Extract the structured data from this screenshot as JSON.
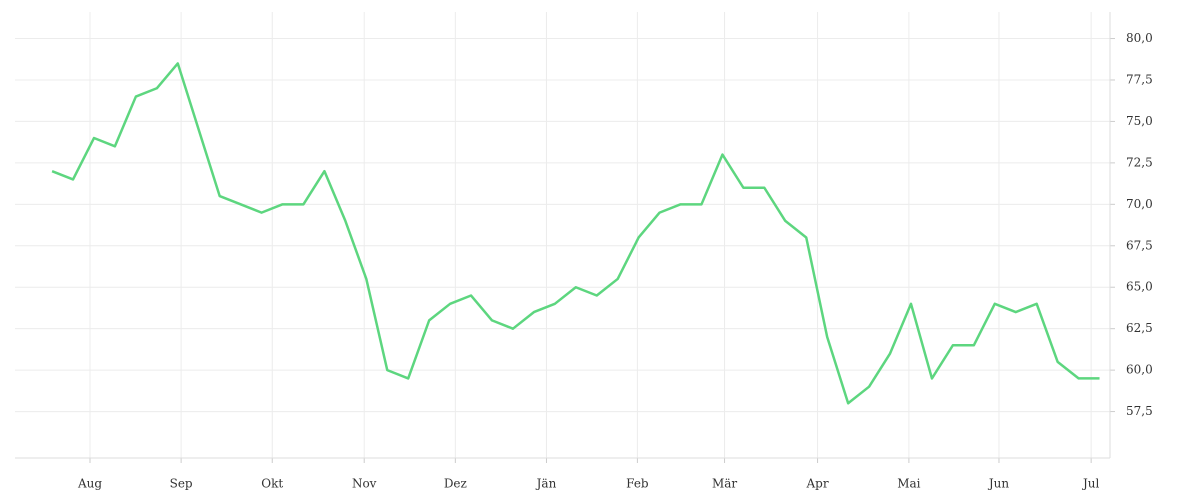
{
  "chart_data": {
    "type": "line",
    "categories": [
      null,
      null,
      null,
      null,
      null,
      null,
      null,
      null,
      null,
      null,
      null,
      null,
      null,
      null,
      null,
      null,
      null,
      null,
      null,
      null,
      null,
      null,
      null,
      null,
      null,
      null,
      null,
      null,
      null,
      null,
      null,
      null,
      null,
      null,
      null,
      null,
      null,
      null,
      null,
      null,
      null,
      null,
      null,
      null,
      null,
      null,
      null,
      null,
      null,
      null,
      null
    ],
    "series": [
      {
        "color": "#5dd67f",
        "values": [
          72.0,
          71.5,
          74.0,
          73.5,
          76.5,
          77.0,
          78.5,
          74.5,
          70.5,
          70.0,
          69.5,
          70.0,
          70.0,
          72.0,
          69.0,
          65.5,
          60.0,
          59.5,
          63.0,
          64.0,
          64.5,
          63.0,
          62.5,
          63.5,
          64.0,
          65.0,
          64.5,
          65.5,
          68.0,
          69.5,
          70.0,
          70.0,
          73.0,
          71.0,
          71.0,
          69.0,
          68.0,
          62.0,
          58.0,
          59.0,
          61.0,
          64.0,
          59.5,
          61.5,
          61.5,
          64.0,
          63.5,
          64.0,
          60.5,
          59.5,
          59.5
        ]
      }
    ],
    "xlim": [
      -1.77,
      50.5
    ],
    "xticks": [
      {
        "value": 1.81,
        "label": "Aug"
      },
      {
        "value": 6.16,
        "label": "Sep"
      },
      {
        "value": 10.51,
        "label": "Okt"
      },
      {
        "value": 14.9,
        "label": "Nov"
      },
      {
        "value": 19.25,
        "label": "Dez"
      },
      {
        "value": 23.6,
        "label": "Jän"
      },
      {
        "value": 27.94,
        "label": "Feb"
      },
      {
        "value": 32.1,
        "label": "Mär"
      },
      {
        "value": 36.54,
        "label": "Apr"
      },
      {
        "value": 40.9,
        "label": "Mai"
      },
      {
        "value": 45.2,
        "label": "Jun"
      },
      {
        "value": 49.6,
        "label": "Jul"
      }
    ],
    "ylim": [
      54.7,
      81.6
    ],
    "yticks": [
      {
        "value": 57.5,
        "label": "57,5"
      },
      {
        "value": 60,
        "label": "60,0"
      },
      {
        "value": 62.5,
        "label": "62,5"
      },
      {
        "value": 65,
        "label": "65,0"
      },
      {
        "value": 67.5,
        "label": "67,5"
      },
      {
        "value": 70,
        "label": "70,0"
      },
      {
        "value": 72.5,
        "label": "72,5"
      },
      {
        "value": 75,
        "label": "75,0"
      },
      {
        "value": 77.5,
        "label": "77,5"
      },
      {
        "value": 80,
        "label": "80,0"
      }
    ],
    "grid": true
  }
}
